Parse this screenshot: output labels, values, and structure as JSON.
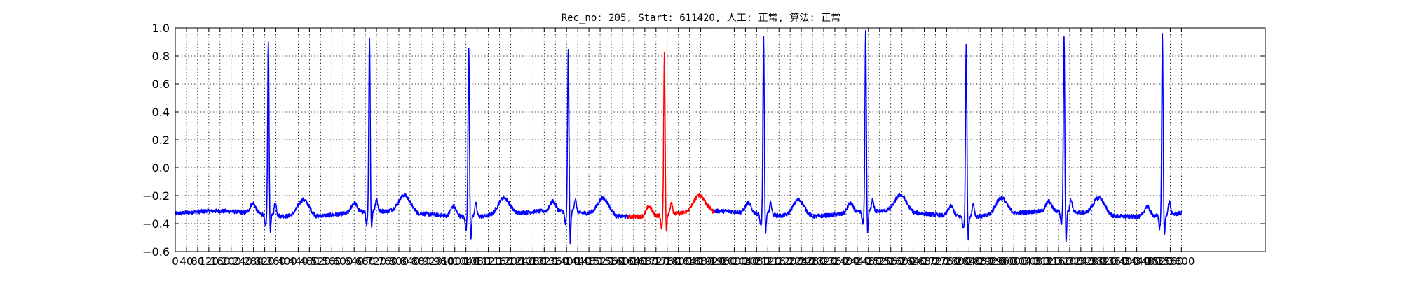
{
  "chart_data": {
    "type": "line",
    "title": "Rec_no: 205, Start: 611420, 人工: 正常, 算法: 正常",
    "ylim": [
      -0.6,
      1.0
    ],
    "xlim": [
      0,
      3900
    ],
    "yticks": [
      "1.0",
      "0.8",
      "0.6",
      "0.4",
      "0.2",
      "0.0",
      "−0.2",
      "−0.4",
      "−0.6"
    ],
    "xticks": [
      0,
      40,
      80,
      120,
      160,
      200,
      240,
      280,
      320,
      360,
      400,
      440,
      480,
      520,
      560,
      600,
      640,
      680,
      720,
      760,
      800,
      840,
      880,
      920,
      960,
      1000,
      1040,
      1080,
      1120,
      1160,
      1200,
      1240,
      1280,
      1320,
      1360,
      1400,
      1440,
      1480,
      1520,
      1560,
      1600,
      1640,
      1680,
      1720,
      1760,
      1800,
      1840,
      1880,
      1920,
      1960,
      2000,
      2040,
      2080,
      2120,
      2160,
      2200,
      2240,
      2280,
      2320,
      2360,
      2400,
      2440,
      2480,
      2520,
      2560,
      2600,
      2640,
      2680,
      2720,
      2760,
      2800,
      2840,
      2880,
      2920,
      2960,
      3000,
      3040,
      3080,
      3120,
      3160,
      3200,
      3240,
      3280,
      3320,
      3360,
      3400,
      3440,
      3480,
      3520,
      3560,
      3600
    ],
    "grid": true,
    "x_end": 3600,
    "baseline": -0.33,
    "r_peaks": [
      {
        "x": 333,
        "y": 0.86,
        "s": -0.46
      },
      {
        "x": 695,
        "y": 0.85,
        "s": -0.45
      },
      {
        "x": 1050,
        "y": 0.84,
        "s": -0.52
      },
      {
        "x": 1406,
        "y": 0.79,
        "s": -0.56
      },
      {
        "x": 1750,
        "y": 0.79,
        "s": -0.45
      },
      {
        "x": 2105,
        "y": 0.88,
        "s": -0.47
      },
      {
        "x": 2470,
        "y": 0.91,
        "s": -0.49
      },
      {
        "x": 2830,
        "y": 0.86,
        "s": -0.5
      },
      {
        "x": 3180,
        "y": 0.88,
        "s": -0.55
      },
      {
        "x": 3532,
        "y": 0.91,
        "s": -0.49
      }
    ],
    "series": [
      {
        "color": "#0000ff",
        "x_range": [
          0,
          1620
        ]
      },
      {
        "color": "#ff0000",
        "x_range": [
          1620,
          1930
        ]
      },
      {
        "color": "#0000ff",
        "x_range": [
          1930,
          3600
        ]
      }
    ]
  }
}
